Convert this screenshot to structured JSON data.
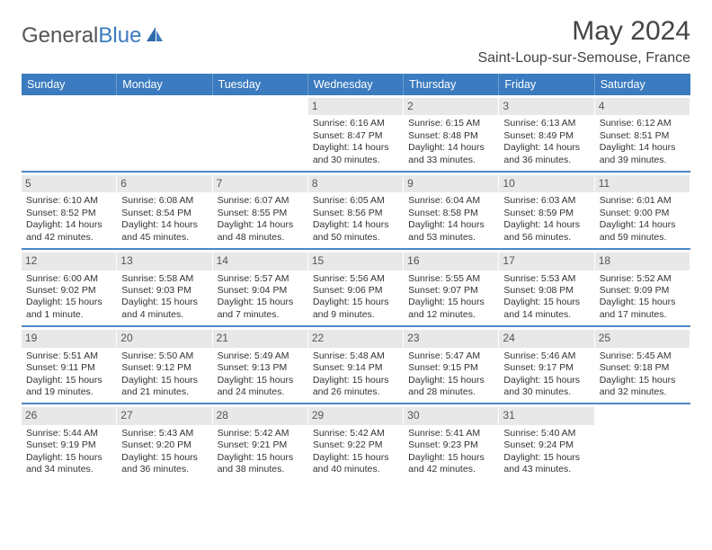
{
  "logo": {
    "text_gray": "General",
    "text_blue": "Blue"
  },
  "header": {
    "title": "May 2024",
    "location": "Saint-Loup-sur-Semouse, France"
  },
  "colors": {
    "header_bg": "#3b7bbf",
    "daynum_bg": "#e8e8e8",
    "text": "#333333",
    "page_bg": "#ffffff"
  },
  "day_labels": [
    "Sunday",
    "Monday",
    "Tuesday",
    "Wednesday",
    "Thursday",
    "Friday",
    "Saturday"
  ],
  "weeks": [
    [
      {
        "n": "",
        "sr": "",
        "ss": "",
        "dl": ""
      },
      {
        "n": "",
        "sr": "",
        "ss": "",
        "dl": ""
      },
      {
        "n": "",
        "sr": "",
        "ss": "",
        "dl": ""
      },
      {
        "n": "1",
        "sr": "Sunrise: 6:16 AM",
        "ss": "Sunset: 8:47 PM",
        "dl": "Daylight: 14 hours and 30 minutes."
      },
      {
        "n": "2",
        "sr": "Sunrise: 6:15 AM",
        "ss": "Sunset: 8:48 PM",
        "dl": "Daylight: 14 hours and 33 minutes."
      },
      {
        "n": "3",
        "sr": "Sunrise: 6:13 AM",
        "ss": "Sunset: 8:49 PM",
        "dl": "Daylight: 14 hours and 36 minutes."
      },
      {
        "n": "4",
        "sr": "Sunrise: 6:12 AM",
        "ss": "Sunset: 8:51 PM",
        "dl": "Daylight: 14 hours and 39 minutes."
      }
    ],
    [
      {
        "n": "5",
        "sr": "Sunrise: 6:10 AM",
        "ss": "Sunset: 8:52 PM",
        "dl": "Daylight: 14 hours and 42 minutes."
      },
      {
        "n": "6",
        "sr": "Sunrise: 6:08 AM",
        "ss": "Sunset: 8:54 PM",
        "dl": "Daylight: 14 hours and 45 minutes."
      },
      {
        "n": "7",
        "sr": "Sunrise: 6:07 AM",
        "ss": "Sunset: 8:55 PM",
        "dl": "Daylight: 14 hours and 48 minutes."
      },
      {
        "n": "8",
        "sr": "Sunrise: 6:05 AM",
        "ss": "Sunset: 8:56 PM",
        "dl": "Daylight: 14 hours and 50 minutes."
      },
      {
        "n": "9",
        "sr": "Sunrise: 6:04 AM",
        "ss": "Sunset: 8:58 PM",
        "dl": "Daylight: 14 hours and 53 minutes."
      },
      {
        "n": "10",
        "sr": "Sunrise: 6:03 AM",
        "ss": "Sunset: 8:59 PM",
        "dl": "Daylight: 14 hours and 56 minutes."
      },
      {
        "n": "11",
        "sr": "Sunrise: 6:01 AM",
        "ss": "Sunset: 9:00 PM",
        "dl": "Daylight: 14 hours and 59 minutes."
      }
    ],
    [
      {
        "n": "12",
        "sr": "Sunrise: 6:00 AM",
        "ss": "Sunset: 9:02 PM",
        "dl": "Daylight: 15 hours and 1 minute."
      },
      {
        "n": "13",
        "sr": "Sunrise: 5:58 AM",
        "ss": "Sunset: 9:03 PM",
        "dl": "Daylight: 15 hours and 4 minutes."
      },
      {
        "n": "14",
        "sr": "Sunrise: 5:57 AM",
        "ss": "Sunset: 9:04 PM",
        "dl": "Daylight: 15 hours and 7 minutes."
      },
      {
        "n": "15",
        "sr": "Sunrise: 5:56 AM",
        "ss": "Sunset: 9:06 PM",
        "dl": "Daylight: 15 hours and 9 minutes."
      },
      {
        "n": "16",
        "sr": "Sunrise: 5:55 AM",
        "ss": "Sunset: 9:07 PM",
        "dl": "Daylight: 15 hours and 12 minutes."
      },
      {
        "n": "17",
        "sr": "Sunrise: 5:53 AM",
        "ss": "Sunset: 9:08 PM",
        "dl": "Daylight: 15 hours and 14 minutes."
      },
      {
        "n": "18",
        "sr": "Sunrise: 5:52 AM",
        "ss": "Sunset: 9:09 PM",
        "dl": "Daylight: 15 hours and 17 minutes."
      }
    ],
    [
      {
        "n": "19",
        "sr": "Sunrise: 5:51 AM",
        "ss": "Sunset: 9:11 PM",
        "dl": "Daylight: 15 hours and 19 minutes."
      },
      {
        "n": "20",
        "sr": "Sunrise: 5:50 AM",
        "ss": "Sunset: 9:12 PM",
        "dl": "Daylight: 15 hours and 21 minutes."
      },
      {
        "n": "21",
        "sr": "Sunrise: 5:49 AM",
        "ss": "Sunset: 9:13 PM",
        "dl": "Daylight: 15 hours and 24 minutes."
      },
      {
        "n": "22",
        "sr": "Sunrise: 5:48 AM",
        "ss": "Sunset: 9:14 PM",
        "dl": "Daylight: 15 hours and 26 minutes."
      },
      {
        "n": "23",
        "sr": "Sunrise: 5:47 AM",
        "ss": "Sunset: 9:15 PM",
        "dl": "Daylight: 15 hours and 28 minutes."
      },
      {
        "n": "24",
        "sr": "Sunrise: 5:46 AM",
        "ss": "Sunset: 9:17 PM",
        "dl": "Daylight: 15 hours and 30 minutes."
      },
      {
        "n": "25",
        "sr": "Sunrise: 5:45 AM",
        "ss": "Sunset: 9:18 PM",
        "dl": "Daylight: 15 hours and 32 minutes."
      }
    ],
    [
      {
        "n": "26",
        "sr": "Sunrise: 5:44 AM",
        "ss": "Sunset: 9:19 PM",
        "dl": "Daylight: 15 hours and 34 minutes."
      },
      {
        "n": "27",
        "sr": "Sunrise: 5:43 AM",
        "ss": "Sunset: 9:20 PM",
        "dl": "Daylight: 15 hours and 36 minutes."
      },
      {
        "n": "28",
        "sr": "Sunrise: 5:42 AM",
        "ss": "Sunset: 9:21 PM",
        "dl": "Daylight: 15 hours and 38 minutes."
      },
      {
        "n": "29",
        "sr": "Sunrise: 5:42 AM",
        "ss": "Sunset: 9:22 PM",
        "dl": "Daylight: 15 hours and 40 minutes."
      },
      {
        "n": "30",
        "sr": "Sunrise: 5:41 AM",
        "ss": "Sunset: 9:23 PM",
        "dl": "Daylight: 15 hours and 42 minutes."
      },
      {
        "n": "31",
        "sr": "Sunrise: 5:40 AM",
        "ss": "Sunset: 9:24 PM",
        "dl": "Daylight: 15 hours and 43 minutes."
      },
      {
        "n": "",
        "sr": "",
        "ss": "",
        "dl": ""
      }
    ]
  ]
}
